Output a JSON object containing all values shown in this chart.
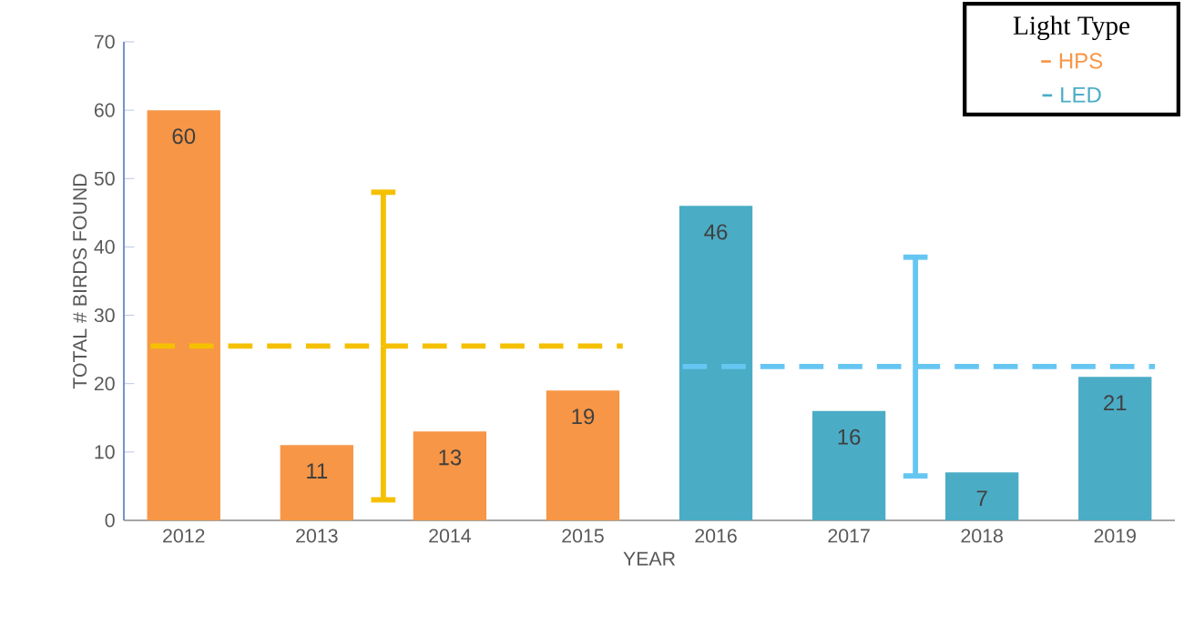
{
  "chart_data": {
    "type": "bar",
    "ylabel": "TOTAL # BIRDS FOUND",
    "xlabel": "YEAR",
    "legend_title": "Light Type",
    "legend": "top right",
    "xlim": [
      2011.55,
      2019.45
    ],
    "xticks": [
      2012,
      2013,
      2014,
      2015,
      2016,
      2017,
      2018,
      2019
    ],
    "ylim": [
      0,
      70
    ],
    "yticks": [
      0,
      10,
      20,
      30,
      40,
      50,
      60,
      70
    ],
    "series": [
      {
        "name": "HPS",
        "color": "#f79646",
        "x": [
          2012,
          2013,
          2014,
          2015
        ],
        "values": [
          60,
          11,
          13,
          19
        ],
        "value_labels": [
          "60",
          "11",
          "13",
          "19"
        ]
      },
      {
        "name": "LED",
        "color": "#4bacc6",
        "x": [
          2016,
          2017,
          2018,
          2019
        ],
        "values": [
          46,
          16,
          7,
          21
        ],
        "value_labels": [
          "46",
          "16",
          "7",
          "21"
        ]
      },
      {
        "type": "line",
        "color": "#f5c000",
        "line_style": "dashed",
        "marker": "none",
        "x": [
          2011.75,
          2013.5,
          2015.3
        ],
        "values": [
          25.5,
          25.5,
          25.5
        ],
        "errors": [
          null,
          [
            3,
            48
          ],
          null
        ]
      },
      {
        "type": "line",
        "color": "#66c6f2",
        "line_style": "dashed",
        "marker": "none",
        "x": [
          2015.75,
          2017.5,
          2019.3
        ],
        "values": [
          22.5,
          22.5,
          22.5
        ],
        "errors": [
          null,
          [
            6.5,
            38.5
          ],
          null
        ]
      }
    ]
  }
}
